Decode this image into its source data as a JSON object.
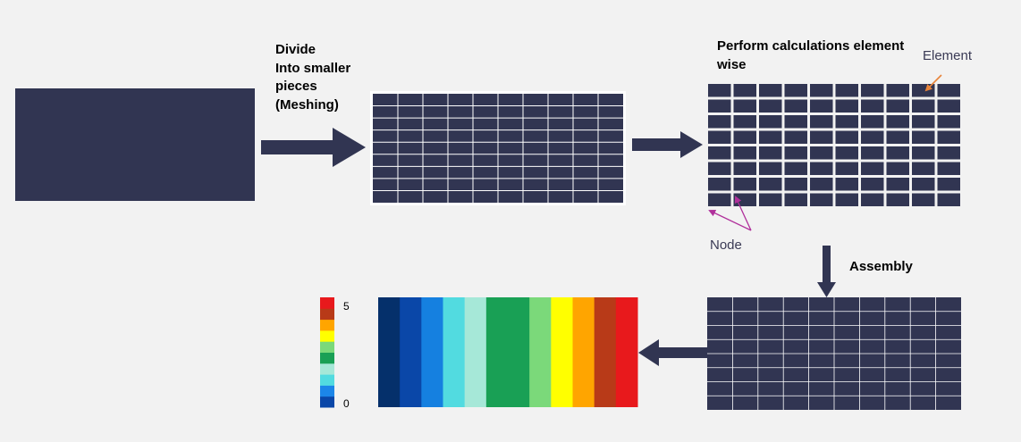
{
  "colors": {
    "background": "#f2f2f2",
    "block": "#313552",
    "grid_line": "#ffffff",
    "node_arrow": "#b0309b",
    "element_arrow": "#e8843a"
  },
  "labels": {
    "divide": "Divide\nInto smaller\npieces\n(Meshing)",
    "perform": "Perform calculations element\nwise",
    "element": "Element",
    "node": "Node",
    "assembly": "Assembly"
  },
  "colorbar": {
    "max_label": "5",
    "min_label": "0",
    "colors": [
      "#0a47a8",
      "#1c86e8",
      "#52dbe0",
      "#a6e8d8",
      "#19a055",
      "#7bd97a",
      "#ffff00",
      "#ffa500",
      "#b83a18",
      "#e8191c"
    ]
  },
  "result_field": {
    "bands": [
      "#05306b",
      "#0a47a8",
      "#1580e0",
      "#52dbe0",
      "#a6e8d8",
      "#19a055",
      "#19a055",
      "#7bd97a",
      "#ffff00",
      "#ffa500",
      "#b83a18",
      "#e8191c"
    ]
  }
}
